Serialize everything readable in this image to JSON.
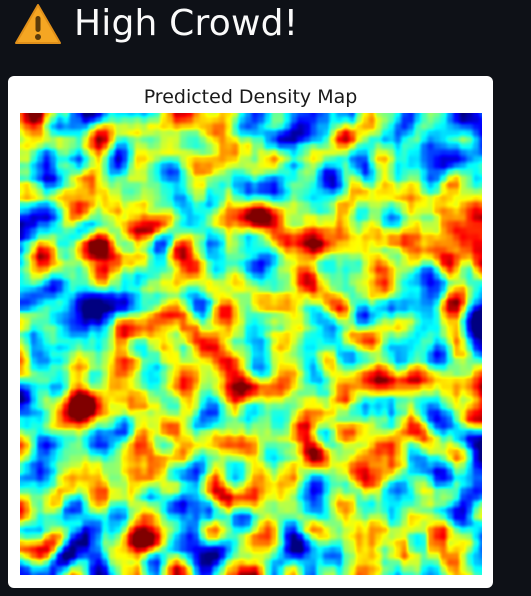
{
  "alert": {
    "icon": "warning-icon",
    "text": "High Crowd!"
  },
  "figure": {
    "title": "Predicted Density Map",
    "colormap": "jet",
    "colors": {
      "low": "#0000ff",
      "mid": "#7fff7f",
      "high": "#ff0000",
      "accent_warning": "#f5a623"
    }
  }
}
